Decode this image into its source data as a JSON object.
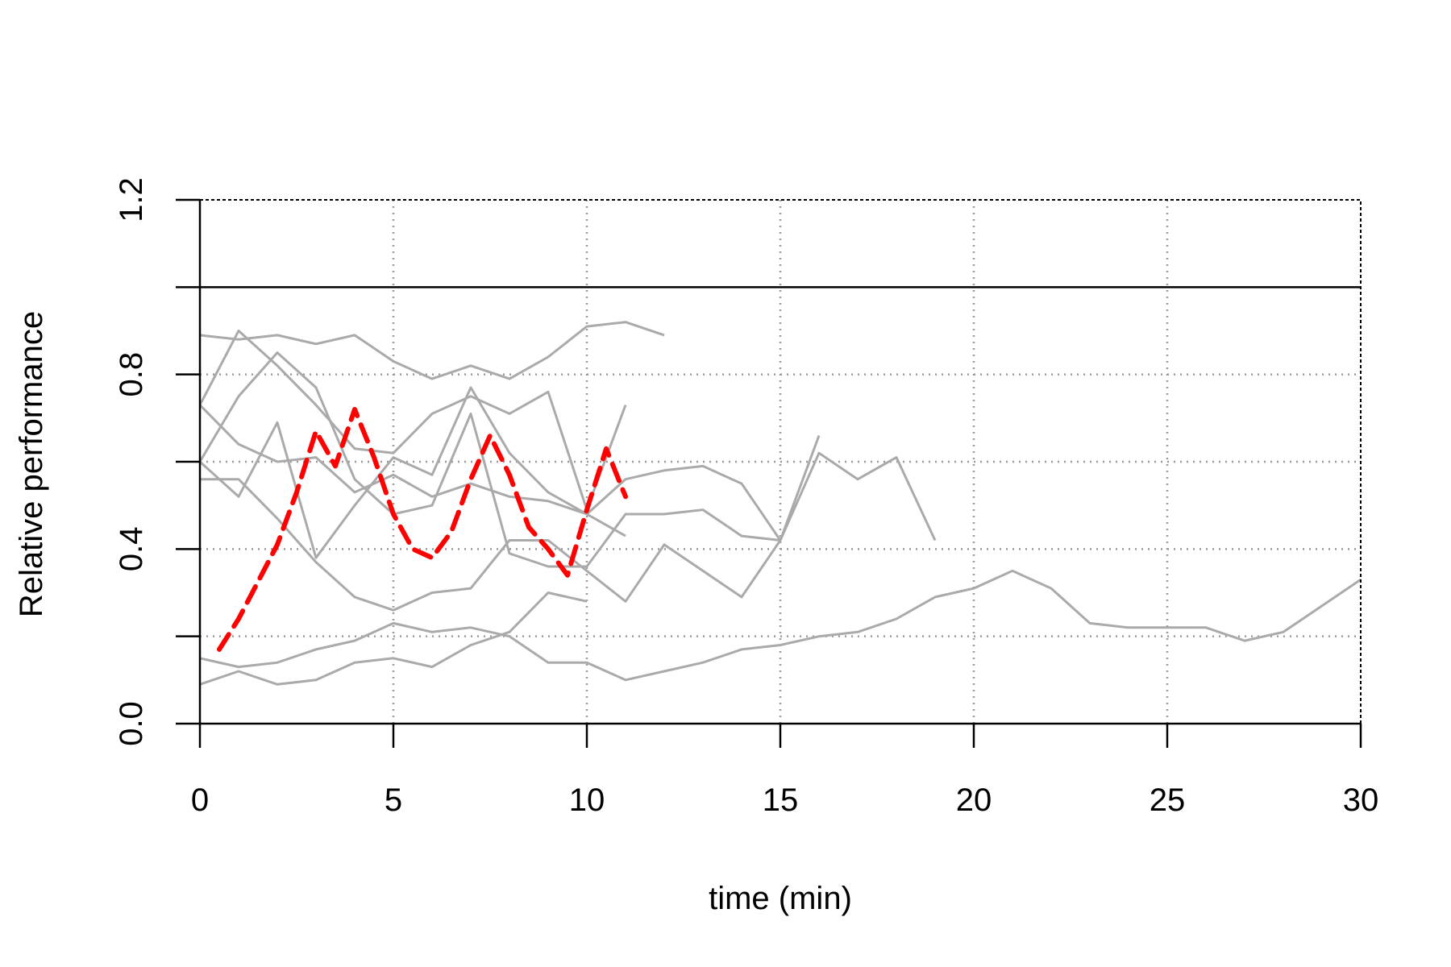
{
  "chart_data": {
    "type": "line",
    "title": "",
    "xlabel": "time (min)",
    "ylabel": "Relative performance",
    "xlim": [
      0,
      30
    ],
    "ylim": [
      0,
      1.2
    ],
    "xticks": [
      0,
      5,
      10,
      15,
      20,
      25,
      30
    ],
    "yticks": [
      0.0,
      0.4,
      0.8,
      1.2
    ],
    "ytick_labels": [
      "0.0",
      "0.4",
      "0.8",
      "1.2"
    ],
    "grid": true,
    "grid_x": [
      5,
      10,
      15,
      20,
      25
    ],
    "grid_y": [
      0.2,
      0.4,
      0.6,
      0.8
    ],
    "reference_line_y": 1.0,
    "colors": {
      "series": "#aaaaaa",
      "highlight": "#ff0000",
      "axis": "#000000",
      "grid": "#999999"
    },
    "series": [
      {
        "x": [
          0,
          1,
          2,
          3,
          4,
          5,
          6,
          7,
          8,
          9,
          10,
          11,
          12
        ],
        "y": [
          0.89,
          0.88,
          0.89,
          0.87,
          0.89,
          0.83,
          0.79,
          0.82,
          0.79,
          0.84,
          0.91,
          0.92,
          0.89
        ]
      },
      {
        "x": [
          0,
          1,
          2,
          3,
          4,
          5,
          6,
          7,
          8,
          9,
          10,
          11
        ],
        "y": [
          0.73,
          0.9,
          0.82,
          0.73,
          0.63,
          0.62,
          0.71,
          0.75,
          0.71,
          0.76,
          0.49,
          0.73
        ]
      },
      {
        "x": [
          0,
          1,
          2,
          3,
          4,
          5,
          6,
          7,
          8,
          9,
          10,
          11,
          12,
          13,
          14,
          15,
          16
        ],
        "y": [
          0.6,
          0.75,
          0.85,
          0.77,
          0.56,
          0.48,
          0.5,
          0.71,
          0.39,
          0.36,
          0.36,
          0.48,
          0.48,
          0.49,
          0.43,
          0.42,
          0.66
        ]
      },
      {
        "x": [
          0,
          1,
          2,
          3,
          4,
          5,
          6,
          7,
          8,
          9,
          10,
          11,
          12,
          13,
          14,
          15,
          16,
          17,
          18,
          19
        ],
        "y": [
          0.56,
          0.56,
          0.47,
          0.37,
          0.29,
          0.26,
          0.3,
          0.31,
          0.42,
          0.42,
          0.35,
          0.28,
          0.41,
          0.35,
          0.29,
          0.42,
          0.62,
          0.56,
          0.61,
          0.42
        ]
      },
      {
        "x": [
          0,
          1,
          2,
          3,
          4,
          5,
          6,
          7,
          8,
          9,
          10,
          11,
          12,
          13,
          14,
          15
        ],
        "y": [
          0.73,
          0.64,
          0.6,
          0.61,
          0.53,
          0.57,
          0.52,
          0.55,
          0.52,
          0.51,
          0.48,
          0.56,
          0.58,
          0.59,
          0.55,
          0.42
        ]
      },
      {
        "x": [
          0,
          1,
          2,
          3,
          4,
          5,
          6,
          7,
          8,
          9,
          10,
          11
        ],
        "y": [
          0.6,
          0.52,
          0.69,
          0.38,
          0.5,
          0.61,
          0.57,
          0.77,
          0.62,
          0.53,
          0.48,
          0.43
        ]
      },
      {
        "x": [
          0,
          1,
          2,
          3,
          4,
          5,
          6,
          7,
          8,
          9,
          10
        ],
        "y": [
          0.09,
          0.12,
          0.09,
          0.1,
          0.14,
          0.15,
          0.13,
          0.18,
          0.21,
          0.3,
          0.28
        ]
      },
      {
        "x": [
          0,
          1,
          2,
          3,
          4,
          5,
          6,
          7,
          8,
          9,
          10,
          11,
          12,
          13,
          14,
          15,
          16,
          17,
          18,
          19,
          20,
          21,
          22,
          23,
          24,
          25,
          26,
          27,
          28,
          29,
          30
        ],
        "y": [
          0.15,
          0.13,
          0.14,
          0.17,
          0.19,
          0.23,
          0.21,
          0.22,
          0.2,
          0.14,
          0.14,
          0.1,
          0.12,
          0.14,
          0.17,
          0.18,
          0.2,
          0.21,
          0.24,
          0.29,
          0.31,
          0.35,
          0.31,
          0.23,
          0.22,
          0.22,
          0.22,
          0.19,
          0.21,
          0.27,
          0.33
        ]
      }
    ],
    "highlight_series": {
      "style": "dashed",
      "x": [
        0.5,
        1,
        2,
        2.5,
        3,
        3.5,
        4,
        4.5,
        5,
        5.5,
        6,
        6.5,
        7,
        7.5,
        8,
        8.5,
        9,
        9.5,
        10,
        10.5,
        11
      ],
      "y": [
        0.17,
        0.24,
        0.41,
        0.53,
        0.67,
        0.59,
        0.72,
        0.61,
        0.48,
        0.4,
        0.38,
        0.44,
        0.56,
        0.66,
        0.57,
        0.45,
        0.4,
        0.34,
        0.49,
        0.63,
        0.52
      ]
    }
  }
}
